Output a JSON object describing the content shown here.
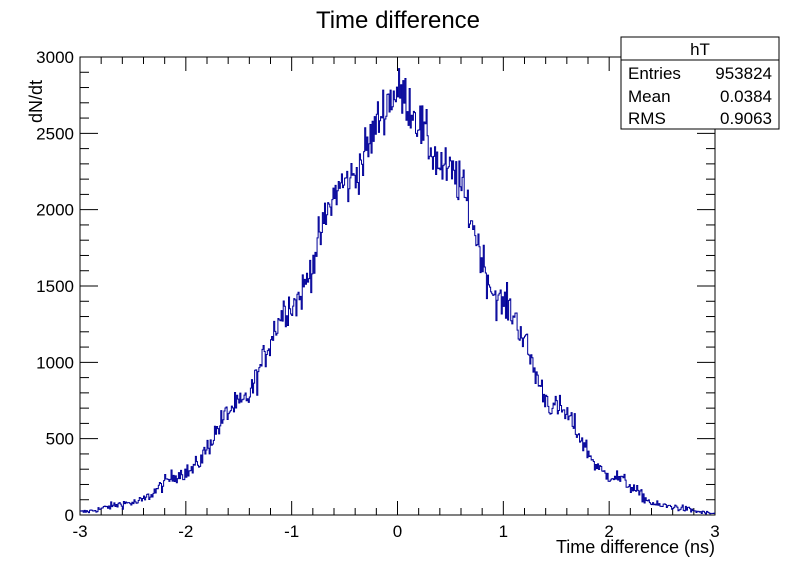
{
  "chart_data": {
    "type": "histogram",
    "title": "Time difference",
    "xlabel": "Time difference (ns)",
    "ylabel": "dN/dt",
    "xlim": [
      -3,
      3
    ],
    "ylim": [
      0,
      3000
    ],
    "x_ticks": [
      "-3",
      "-2",
      "-1",
      "0",
      "1",
      "2",
      "3"
    ],
    "y_ticks": [
      "0",
      "500",
      "1000",
      "1500",
      "2000",
      "2500",
      "3000"
    ],
    "line_color": "#000099",
    "bins": 600,
    "peak_approx": 2800,
    "sample_points": {
      "x": [
        -3.0,
        -2.5,
        -2.0,
        -1.5,
        -1.0,
        -0.5,
        0.0,
        0.5,
        1.0,
        1.5,
        2.0,
        2.5,
        3.0
      ],
      "y": [
        20,
        80,
        280,
        720,
        1380,
        2170,
        2760,
        2240,
        1380,
        700,
        260,
        60,
        10
      ]
    },
    "stats_box": {
      "title": "hT",
      "rows": [
        {
          "label": "Entries",
          "value": "953824"
        },
        {
          "label": "Mean",
          "value": "0.0384"
        },
        {
          "label": "RMS",
          "value": "0.9063"
        }
      ]
    }
  }
}
